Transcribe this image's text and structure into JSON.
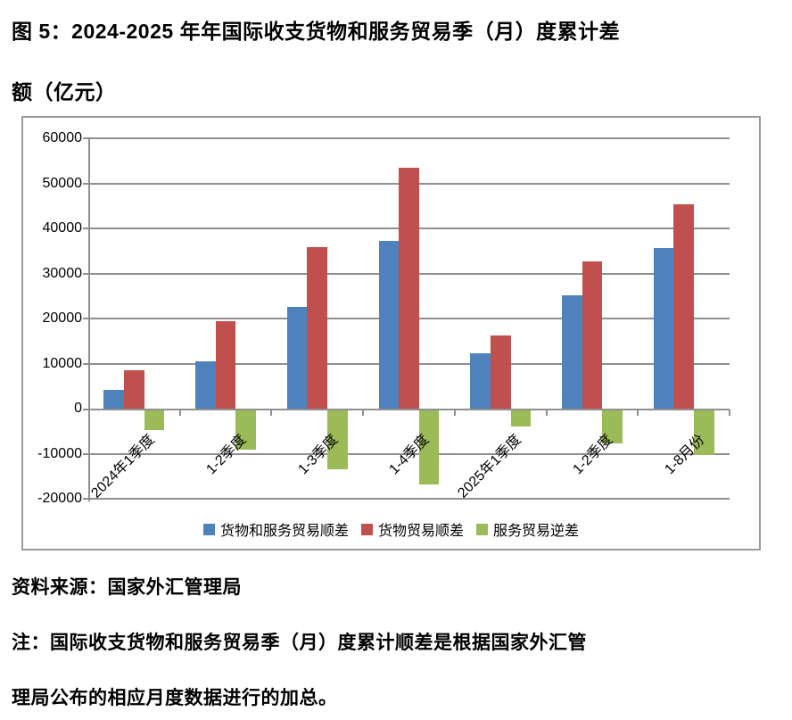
{
  "figure": {
    "title_line1": "图 5：2024-2025 年年国际收支货物和服务贸易季（月）度累计差",
    "title_line2": "额（亿元）",
    "source": "资料来源：国家外汇管理局",
    "note_line1": "注：国际收支货物和服务贸易季（月）度累计顺差是根据国家外汇管",
    "note_line2": "理局公布的相应月度数据进行的加总。"
  },
  "chart_data": {
    "type": "bar",
    "title": "",
    "xlabel": "",
    "ylabel": "",
    "categories": [
      "2024年1季度",
      "1-2季度",
      "1-3季度",
      "1-4季度",
      "2025年1季度",
      "1-2季度",
      "1-8月份"
    ],
    "series": [
      {
        "name": "货物和服务贸易顺差",
        "color": "#4F81BD",
        "values": [
          4200,
          10500,
          22600,
          37300,
          12300,
          25200,
          35700
        ]
      },
      {
        "name": "货物贸易顺差",
        "color": "#C0504D",
        "values": [
          8600,
          19400,
          35800,
          53500,
          16200,
          32700,
          45400
        ]
      },
      {
        "name": "服务贸易逆差",
        "color": "#9BBB59",
        "values": [
          -4300,
          -8800,
          -13000,
          -16400,
          -3600,
          -7400,
          -9900
        ]
      }
    ],
    "ylim": [
      -20000,
      60000
    ],
    "ytick_step": 10000,
    "yticks": [
      60000,
      50000,
      40000,
      30000,
      20000,
      10000,
      0,
      -10000,
      -20000
    ],
    "grid": true,
    "grid_color": "#8f8f8f",
    "frame_color": "#9a9a9a",
    "legend_position": "bottom"
  }
}
